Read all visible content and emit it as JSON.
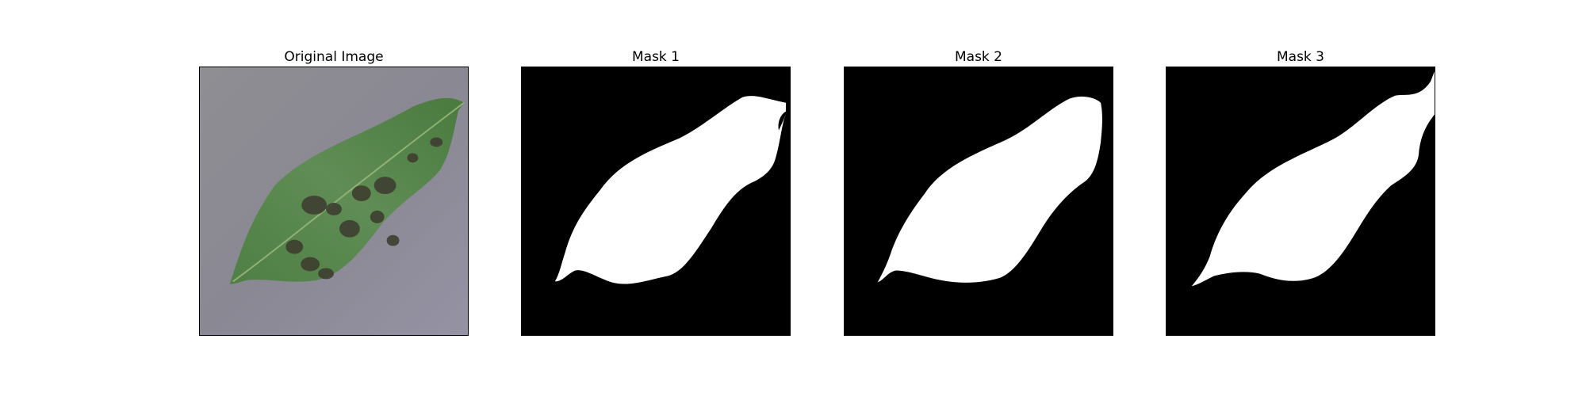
{
  "figure": {
    "panels": [
      {
        "title": "Original Image",
        "kind": "photo"
      },
      {
        "title": "Mask 1",
        "kind": "mask"
      },
      {
        "title": "Mask 2",
        "kind": "mask"
      },
      {
        "title": "Mask 3",
        "kind": "mask"
      }
    ]
  },
  "colors": {
    "mask_background": "#000000",
    "mask_foreground": "#ffffff",
    "photo_background": "#8e8c96",
    "leaf_green": "#5a8a4a",
    "leaf_dark_spot": "#3d3f2f"
  }
}
